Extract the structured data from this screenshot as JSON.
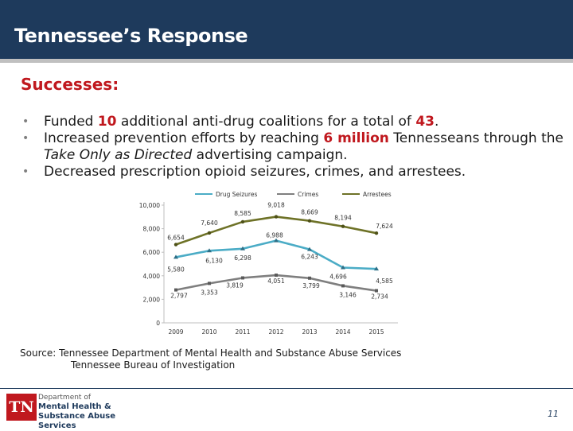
{
  "header": {
    "title": "Tennessee’s Response"
  },
  "successes": {
    "heading": "Successes:",
    "bullets": [
      {
        "pre": "Funded ",
        "hl": "10",
        "post": " additional anti-drug coalitions for a total of ",
        "hl2": "43",
        "post2": "."
      },
      {
        "pre": "Increased prevention efforts by reaching ",
        "hl": "6 million",
        "post": " Tennesseans through the ",
        "italic": "Take Only as Directed",
        "post2": " advertising campaign."
      },
      {
        "pre": "Decreased prescription opioid seizures, crimes, and arrestees."
      }
    ]
  },
  "chart_data": {
    "type": "line",
    "x": [
      "2009",
      "2010",
      "2011",
      "2012",
      "2013",
      "2014",
      "2015"
    ],
    "yticks": [
      "0",
      "2,000",
      "4,000",
      "6,000",
      "8,000",
      "10,000"
    ],
    "ylim": [
      0,
      10000
    ],
    "legend_position": "top",
    "series": [
      {
        "name": "Drug Seizures",
        "color": "#4bacc6",
        "values": [
          5580,
          6130,
          6298,
          6988,
          6243,
          4696,
          4585
        ],
        "labels": [
          "5,580",
          "6,130",
          "6,298",
          "6,988",
          "6,243",
          "4,696",
          "4,585"
        ]
      },
      {
        "name": "Crimes",
        "color": "#7f7f7f",
        "values": [
          2797,
          3353,
          3819,
          4051,
          3799,
          3146,
          2734
        ],
        "labels": [
          "2,797",
          "3,353",
          "3,819",
          "4,051",
          "3,799",
          "3,146",
          "2,734"
        ]
      },
      {
        "name": "Arrestees",
        "color": "#6e7227",
        "values": [
          6654,
          7640,
          8585,
          9018,
          8669,
          8194,
          7624
        ],
        "labels": [
          "6,654",
          "7,640",
          "8,585",
          "9,018",
          "8,669",
          "8,194",
          "7,624"
        ]
      }
    ]
  },
  "source": {
    "line1": "Source: Tennessee Department of Mental Health and Substance Abuse Services",
    "line2": "Tennessee Bureau of Investigation"
  },
  "logo": {
    "tn": "TN",
    "dept_small": "Department of",
    "dept_line1": "Mental Health &",
    "dept_line2": "Substance Abuse Services"
  },
  "page_number": "11"
}
